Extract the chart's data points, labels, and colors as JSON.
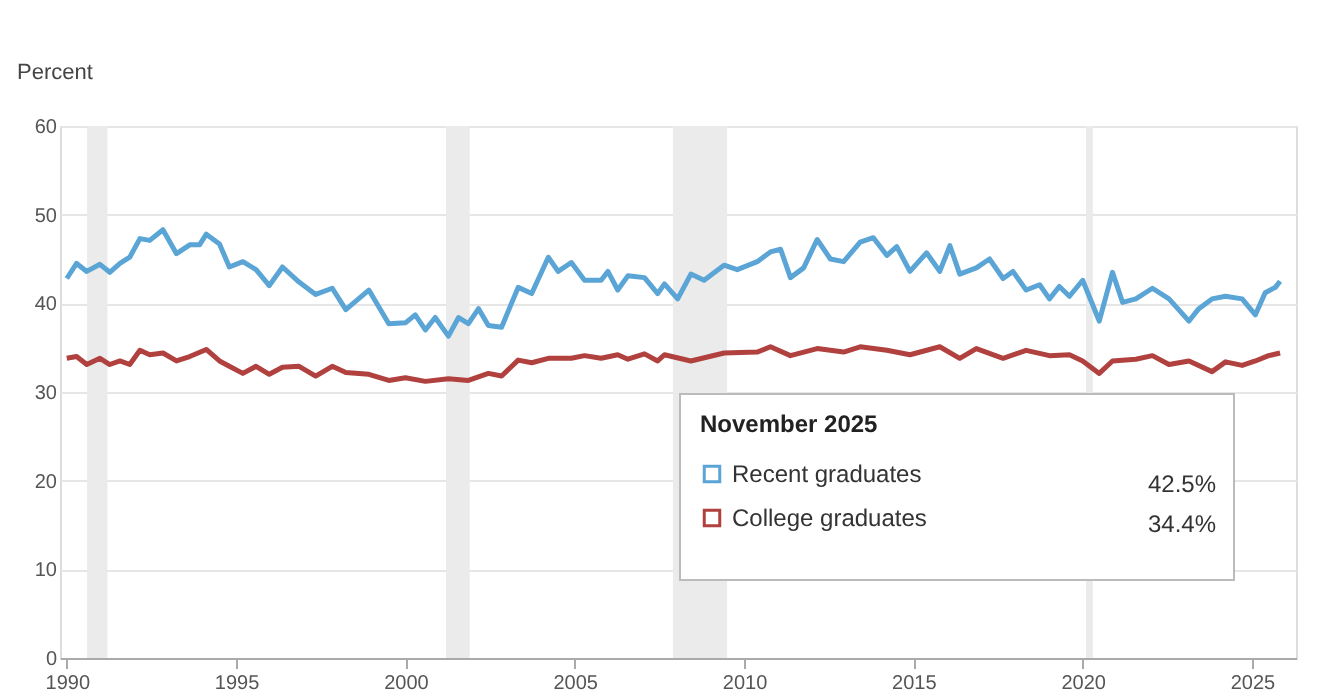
{
  "chart_data": {
    "type": "line",
    "ylabel": "Percent",
    "legend_title": "November 2025",
    "legend": "right",
    "grid": "y",
    "marker": "none",
    "line_style": "solid",
    "xlim": [
      1989.8,
      2026.3
    ],
    "xticks": [
      1990,
      1995,
      2000,
      2005,
      2010,
      2015,
      2020,
      2025
    ],
    "ylim": [
      0,
      60
    ],
    "yticks": [
      0,
      10,
      20,
      30,
      40,
      50,
      60
    ],
    "bands": [
      {
        "axis": "x",
        "from": 1990.6,
        "to": 1991.2,
        "color": "#ebebeb"
      },
      {
        "axis": "x",
        "from": 2001.2,
        "to": 2001.9,
        "color": "#ebebeb"
      },
      {
        "axis": "x",
        "from": 2007.9,
        "to": 2009.5,
        "color": "#ebebeb"
      },
      {
        "axis": "x",
        "from": 2020.1,
        "to": 2020.3,
        "color": "#ebebeb"
      }
    ],
    "annotations": [
      "42.5%",
      "34.4%"
    ],
    "series": [
      {
        "name": "Recent graduates",
        "color": "#5aa5d6",
        "x": [
          1990,
          1990.29,
          1990.59,
          1990.98,
          1991.27,
          1991.57,
          1991.86,
          1992.16,
          1992.45,
          1992.84,
          1993.24,
          1993.63,
          1993.92,
          1994.12,
          1994.51,
          1994.8,
          1995.2,
          1995.59,
          1995.98,
          1996.37,
          1996.86,
          1997.35,
          1997.84,
          1998.24,
          1998.92,
          1999.51,
          2000,
          2000.29,
          2000.59,
          2000.88,
          2001.27,
          2001.57,
          2001.86,
          2002.16,
          2002.45,
          2002.84,
          2003.33,
          2003.73,
          2004.22,
          2004.51,
          2004.9,
          2005.29,
          2005.78,
          2005.98,
          2006.27,
          2006.57,
          2007.06,
          2007.45,
          2007.65,
          2008.04,
          2008.43,
          2008.82,
          2009.41,
          2009.8,
          2010.39,
          2010.78,
          2011.08,
          2011.37,
          2011.76,
          2012.16,
          2012.55,
          2012.94,
          2013.43,
          2013.82,
          2014.22,
          2014.51,
          2014.9,
          2015.39,
          2015.78,
          2016.08,
          2016.37,
          2016.86,
          2017.25,
          2017.65,
          2017.94,
          2018.33,
          2018.73,
          2019.02,
          2019.31,
          2019.61,
          2020.0,
          2020.49,
          2020.88,
          2021.18,
          2021.57,
          2022.06,
          2022.55,
          2023.14,
          2023.43,
          2023.82,
          2024.22,
          2024.71,
          2025.1,
          2025.39,
          2025.69,
          2025.83
        ],
        "values": [
          42.8,
          44.5,
          43.6,
          44.4,
          43.5,
          44.5,
          45.2,
          47.3,
          47.1,
          48.3,
          45.6,
          46.6,
          46.6,
          47.8,
          46.7,
          44.1,
          44.7,
          43.8,
          42.0,
          44.1,
          42.4,
          41.0,
          41.7,
          39.3,
          41.5,
          37.7,
          37.8,
          38.7,
          37.0,
          38.4,
          36.3,
          38.4,
          37.7,
          39.4,
          37.5,
          37.3,
          41.8,
          41.1,
          45.2,
          43.6,
          44.6,
          42.6,
          42.6,
          43.6,
          41.5,
          43.1,
          42.9,
          41.1,
          42.2,
          40.5,
          43.3,
          42.6,
          44.3,
          43.8,
          44.7,
          45.8,
          46.1,
          42.9,
          44.0,
          47.2,
          45.0,
          44.7,
          46.9,
          47.4,
          45.4,
          46.4,
          43.6,
          45.7,
          43.6,
          46.5,
          43.3,
          44.0,
          45.0,
          42.8,
          43.6,
          41.5,
          42.1,
          40.5,
          41.9,
          40.8,
          42.6,
          38.0,
          43.5,
          40.1,
          40.5,
          41.7,
          40.5,
          38.0,
          39.4,
          40.5,
          40.8,
          40.5,
          38.7,
          41.2,
          41.8,
          42.5
        ]
      },
      {
        "name": "College graduates",
        "color": "#b0413e",
        "x": [
          1990,
          1990.29,
          1990.59,
          1990.98,
          1991.27,
          1991.57,
          1991.86,
          1992.16,
          1992.45,
          1992.84,
          1993.24,
          1993.63,
          1994.12,
          1994.51,
          1994.8,
          1995.2,
          1995.59,
          1995.98,
          1996.37,
          1996.86,
          1997.35,
          1997.84,
          1998.24,
          1998.92,
          1999.51,
          2000,
          2000.59,
          2001.27,
          2001.86,
          2002.45,
          2002.84,
          2003.33,
          2003.73,
          2004.22,
          2004.9,
          2005.29,
          2005.78,
          2006.27,
          2006.57,
          2007.06,
          2007.45,
          2007.65,
          2008.43,
          2009.41,
          2010.39,
          2010.78,
          2011.37,
          2012.16,
          2012.94,
          2013.43,
          2014.22,
          2014.9,
          2015.78,
          2016.37,
          2016.86,
          2017.65,
          2018.33,
          2019.02,
          2019.61,
          2020.0,
          2020.49,
          2020.88,
          2021.57,
          2022.06,
          2022.55,
          2023.14,
          2023.82,
          2024.22,
          2024.71,
          2025.1,
          2025.49,
          2025.83
        ],
        "values": [
          33.8,
          34.0,
          33.1,
          33.8,
          33.1,
          33.5,
          33.1,
          34.7,
          34.2,
          34.4,
          33.5,
          34.0,
          34.8,
          33.5,
          32.9,
          32.1,
          32.9,
          32.0,
          32.8,
          32.9,
          31.8,
          32.9,
          32.2,
          32.0,
          31.3,
          31.6,
          31.2,
          31.5,
          31.3,
          32.1,
          31.8,
          33.6,
          33.3,
          33.8,
          33.8,
          34.1,
          33.8,
          34.2,
          33.7,
          34.3,
          33.5,
          34.2,
          33.5,
          34.4,
          34.5,
          35.1,
          34.1,
          34.9,
          34.5,
          35.1,
          34.7,
          34.2,
          35.1,
          33.8,
          34.9,
          33.8,
          34.7,
          34.1,
          34.2,
          33.5,
          32.1,
          33.5,
          33.7,
          34.1,
          33.1,
          33.5,
          32.3,
          33.4,
          33.0,
          33.5,
          34.1,
          34.4
        ]
      }
    ]
  }
}
